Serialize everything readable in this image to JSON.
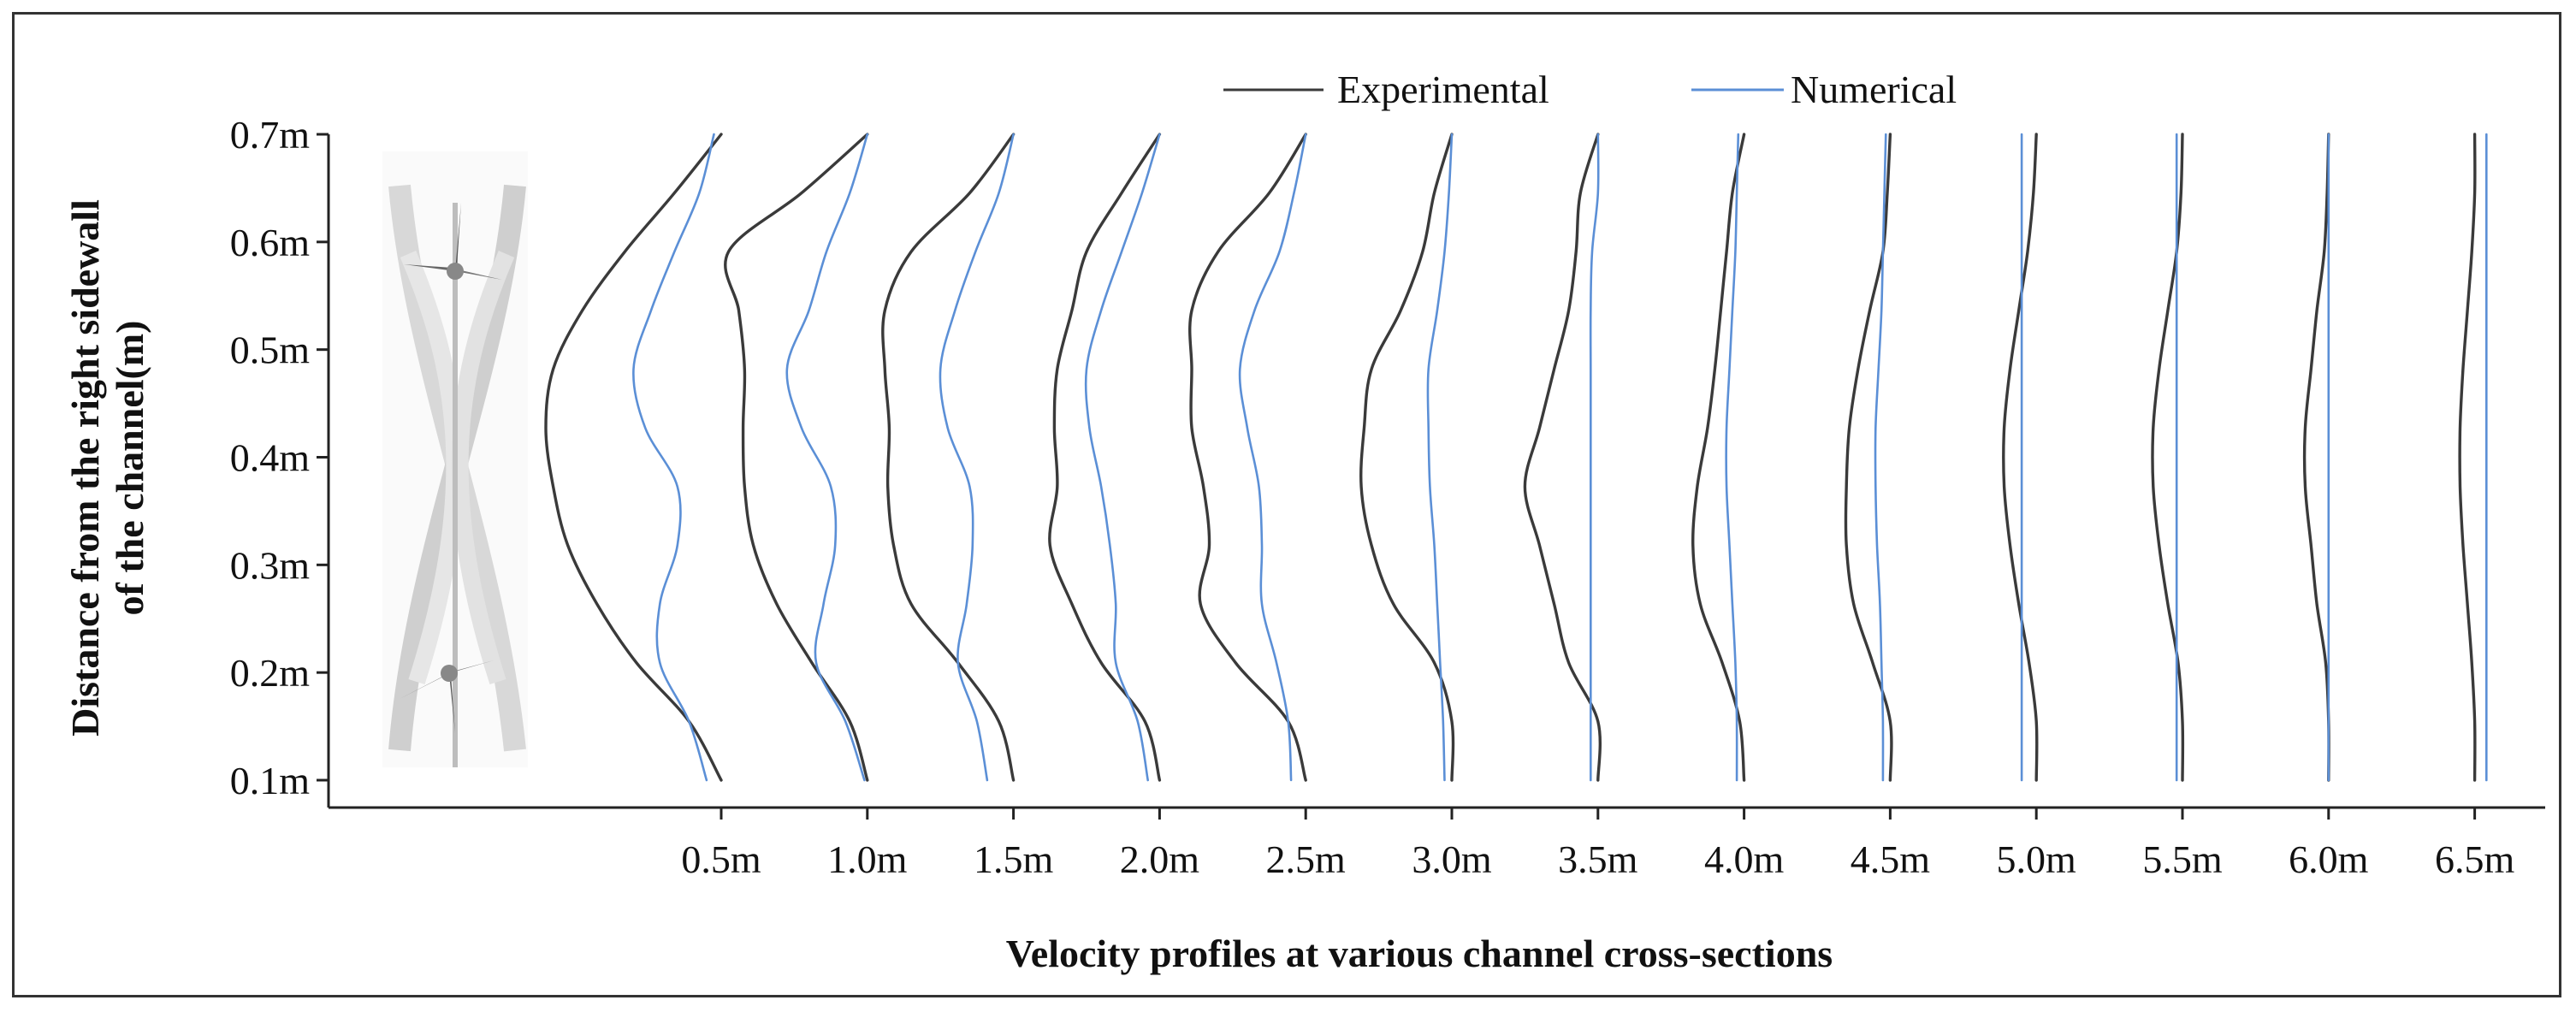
{
  "chart_data": {
    "type": "line",
    "title": "",
    "xlabel": "Velocity profiles at various channel cross-sections",
    "ylabel_line1": "Distance from the right sidewall",
    "ylabel_line2": "of the channel(m)",
    "y_ticks": [
      "0.1m",
      "0.2m",
      "0.3m",
      "0.4m",
      "0.5m",
      "0.6m",
      "0.7m"
    ],
    "y_values": [
      0.1,
      0.2,
      0.3,
      0.4,
      0.5,
      0.6,
      0.7
    ],
    "ylim": [
      0.1,
      0.7
    ],
    "x_ticks": [
      "0.5m",
      "1.0m",
      "1.5m",
      "2.0m",
      "2.5m",
      "3.0m",
      "3.5m",
      "4.0m",
      "4.5m",
      "5.0m",
      "5.5m",
      "6.0m",
      "6.5m"
    ],
    "legend": [
      {
        "name": "Experimental",
        "color": "#3a3a3a"
      },
      {
        "name": "Numerical",
        "color": "#5b8fd6"
      }
    ],
    "profile_deficit_units": "fraction of section spacing (left deflection from station)",
    "series": [
      {
        "name": "Experimental",
        "color": "#3a3a3a",
        "profiles": [
          [
            0.0,
            0.22,
            0.58,
            0.85,
            1.05,
            1.15,
            1.2,
            1.15,
            0.95,
            0.66,
            0.32,
            0.0
          ],
          [
            0.0,
            0.12,
            0.38,
            0.62,
            0.78,
            0.84,
            0.85,
            0.84,
            0.88,
            0.95,
            0.45,
            0.0
          ],
          [
            0.0,
            0.1,
            0.38,
            0.7,
            0.82,
            0.86,
            0.85,
            0.88,
            0.88,
            0.7,
            0.3,
            0.0
          ],
          [
            0.0,
            0.1,
            0.4,
            0.6,
            0.75,
            0.7,
            0.72,
            0.7,
            0.6,
            0.5,
            0.26,
            0.0
          ],
          [
            0.0,
            0.12,
            0.48,
            0.72,
            0.66,
            0.7,
            0.78,
            0.78,
            0.78,
            0.6,
            0.25,
            0.0
          ],
          [
            0.0,
            0.0,
            0.12,
            0.4,
            0.55,
            0.62,
            0.6,
            0.55,
            0.35,
            0.2,
            0.12,
            0.0
          ],
          [
            0.0,
            0.0,
            0.2,
            0.3,
            0.4,
            0.5,
            0.4,
            0.3,
            0.2,
            0.15,
            0.12,
            0.0
          ],
          [
            0.0,
            0.03,
            0.15,
            0.3,
            0.35,
            0.32,
            0.25,
            0.2,
            0.16,
            0.12,
            0.08,
            0.0
          ],
          [
            0.0,
            0.0,
            0.12,
            0.25,
            0.3,
            0.3,
            0.28,
            0.22,
            0.14,
            0.05,
            0.02,
            0.0
          ],
          [
            0.0,
            0.0,
            0.05,
            0.12,
            0.18,
            0.22,
            0.22,
            0.18,
            0.12,
            0.06,
            0.02,
            0.0
          ],
          [
            0.0,
            0.0,
            0.03,
            0.1,
            0.16,
            0.2,
            0.2,
            0.16,
            0.1,
            0.04,
            0.01,
            0.0
          ],
          [
            0.0,
            0.0,
            0.02,
            0.08,
            0.12,
            0.16,
            0.16,
            0.12,
            0.08,
            0.03,
            0.01,
            0.0
          ],
          [
            0.0,
            0.0,
            0.02,
            0.05,
            0.08,
            0.1,
            0.1,
            0.08,
            0.05,
            0.02,
            0.0,
            0.0
          ]
        ]
      },
      {
        "name": "Numerical",
        "color": "#5b8fd6",
        "profiles": [
          [
            0.1,
            0.22,
            0.42,
            0.42,
            0.3,
            0.3,
            0.52,
            0.6,
            0.48,
            0.32,
            0.15,
            0.05
          ],
          [
            0.02,
            0.15,
            0.35,
            0.3,
            0.22,
            0.25,
            0.45,
            0.55,
            0.4,
            0.28,
            0.12,
            0.0
          ],
          [
            0.18,
            0.25,
            0.38,
            0.32,
            0.28,
            0.3,
            0.45,
            0.5,
            0.4,
            0.26,
            0.1,
            0.0
          ],
          [
            0.08,
            0.15,
            0.3,
            0.3,
            0.34,
            0.4,
            0.48,
            0.5,
            0.4,
            0.26,
            0.12,
            0.0
          ],
          [
            0.1,
            0.12,
            0.2,
            0.3,
            0.3,
            0.32,
            0.4,
            0.45,
            0.35,
            0.18,
            0.08,
            0.0
          ],
          [
            0.05,
            0.06,
            0.08,
            0.1,
            0.12,
            0.15,
            0.16,
            0.16,
            0.1,
            0.05,
            0.02,
            0.0
          ],
          [
            0.05,
            0.05,
            0.05,
            0.05,
            0.05,
            0.05,
            0.05,
            0.05,
            0.05,
            0.04,
            0.0,
            0.0
          ],
          [
            0.05,
            0.05,
            0.06,
            0.08,
            0.1,
            0.12,
            0.12,
            0.1,
            0.08,
            0.06,
            0.05,
            0.04
          ],
          [
            0.05,
            0.05,
            0.06,
            0.07,
            0.09,
            0.1,
            0.1,
            0.08,
            0.06,
            0.05,
            0.04,
            0.03
          ],
          [
            0.1,
            0.1,
            0.1,
            0.1,
            0.1,
            0.1,
            0.1,
            0.1,
            0.1,
            0.1,
            0.1,
            0.1
          ],
          [
            0.04,
            0.04,
            0.04,
            0.04,
            0.04,
            0.04,
            0.04,
            0.04,
            0.04,
            0.04,
            0.04,
            0.04
          ],
          [
            0.0,
            0.0,
            0.0,
            0.0,
            0.0,
            0.0,
            0.0,
            0.0,
            0.0,
            0.0,
            0.0,
            0.0
          ],
          [
            -0.08,
            -0.08,
            -0.08,
            -0.08,
            -0.08,
            -0.08,
            -0.08,
            -0.08,
            -0.08,
            -0.08,
            -0.08,
            -0.08
          ]
        ]
      }
    ]
  }
}
